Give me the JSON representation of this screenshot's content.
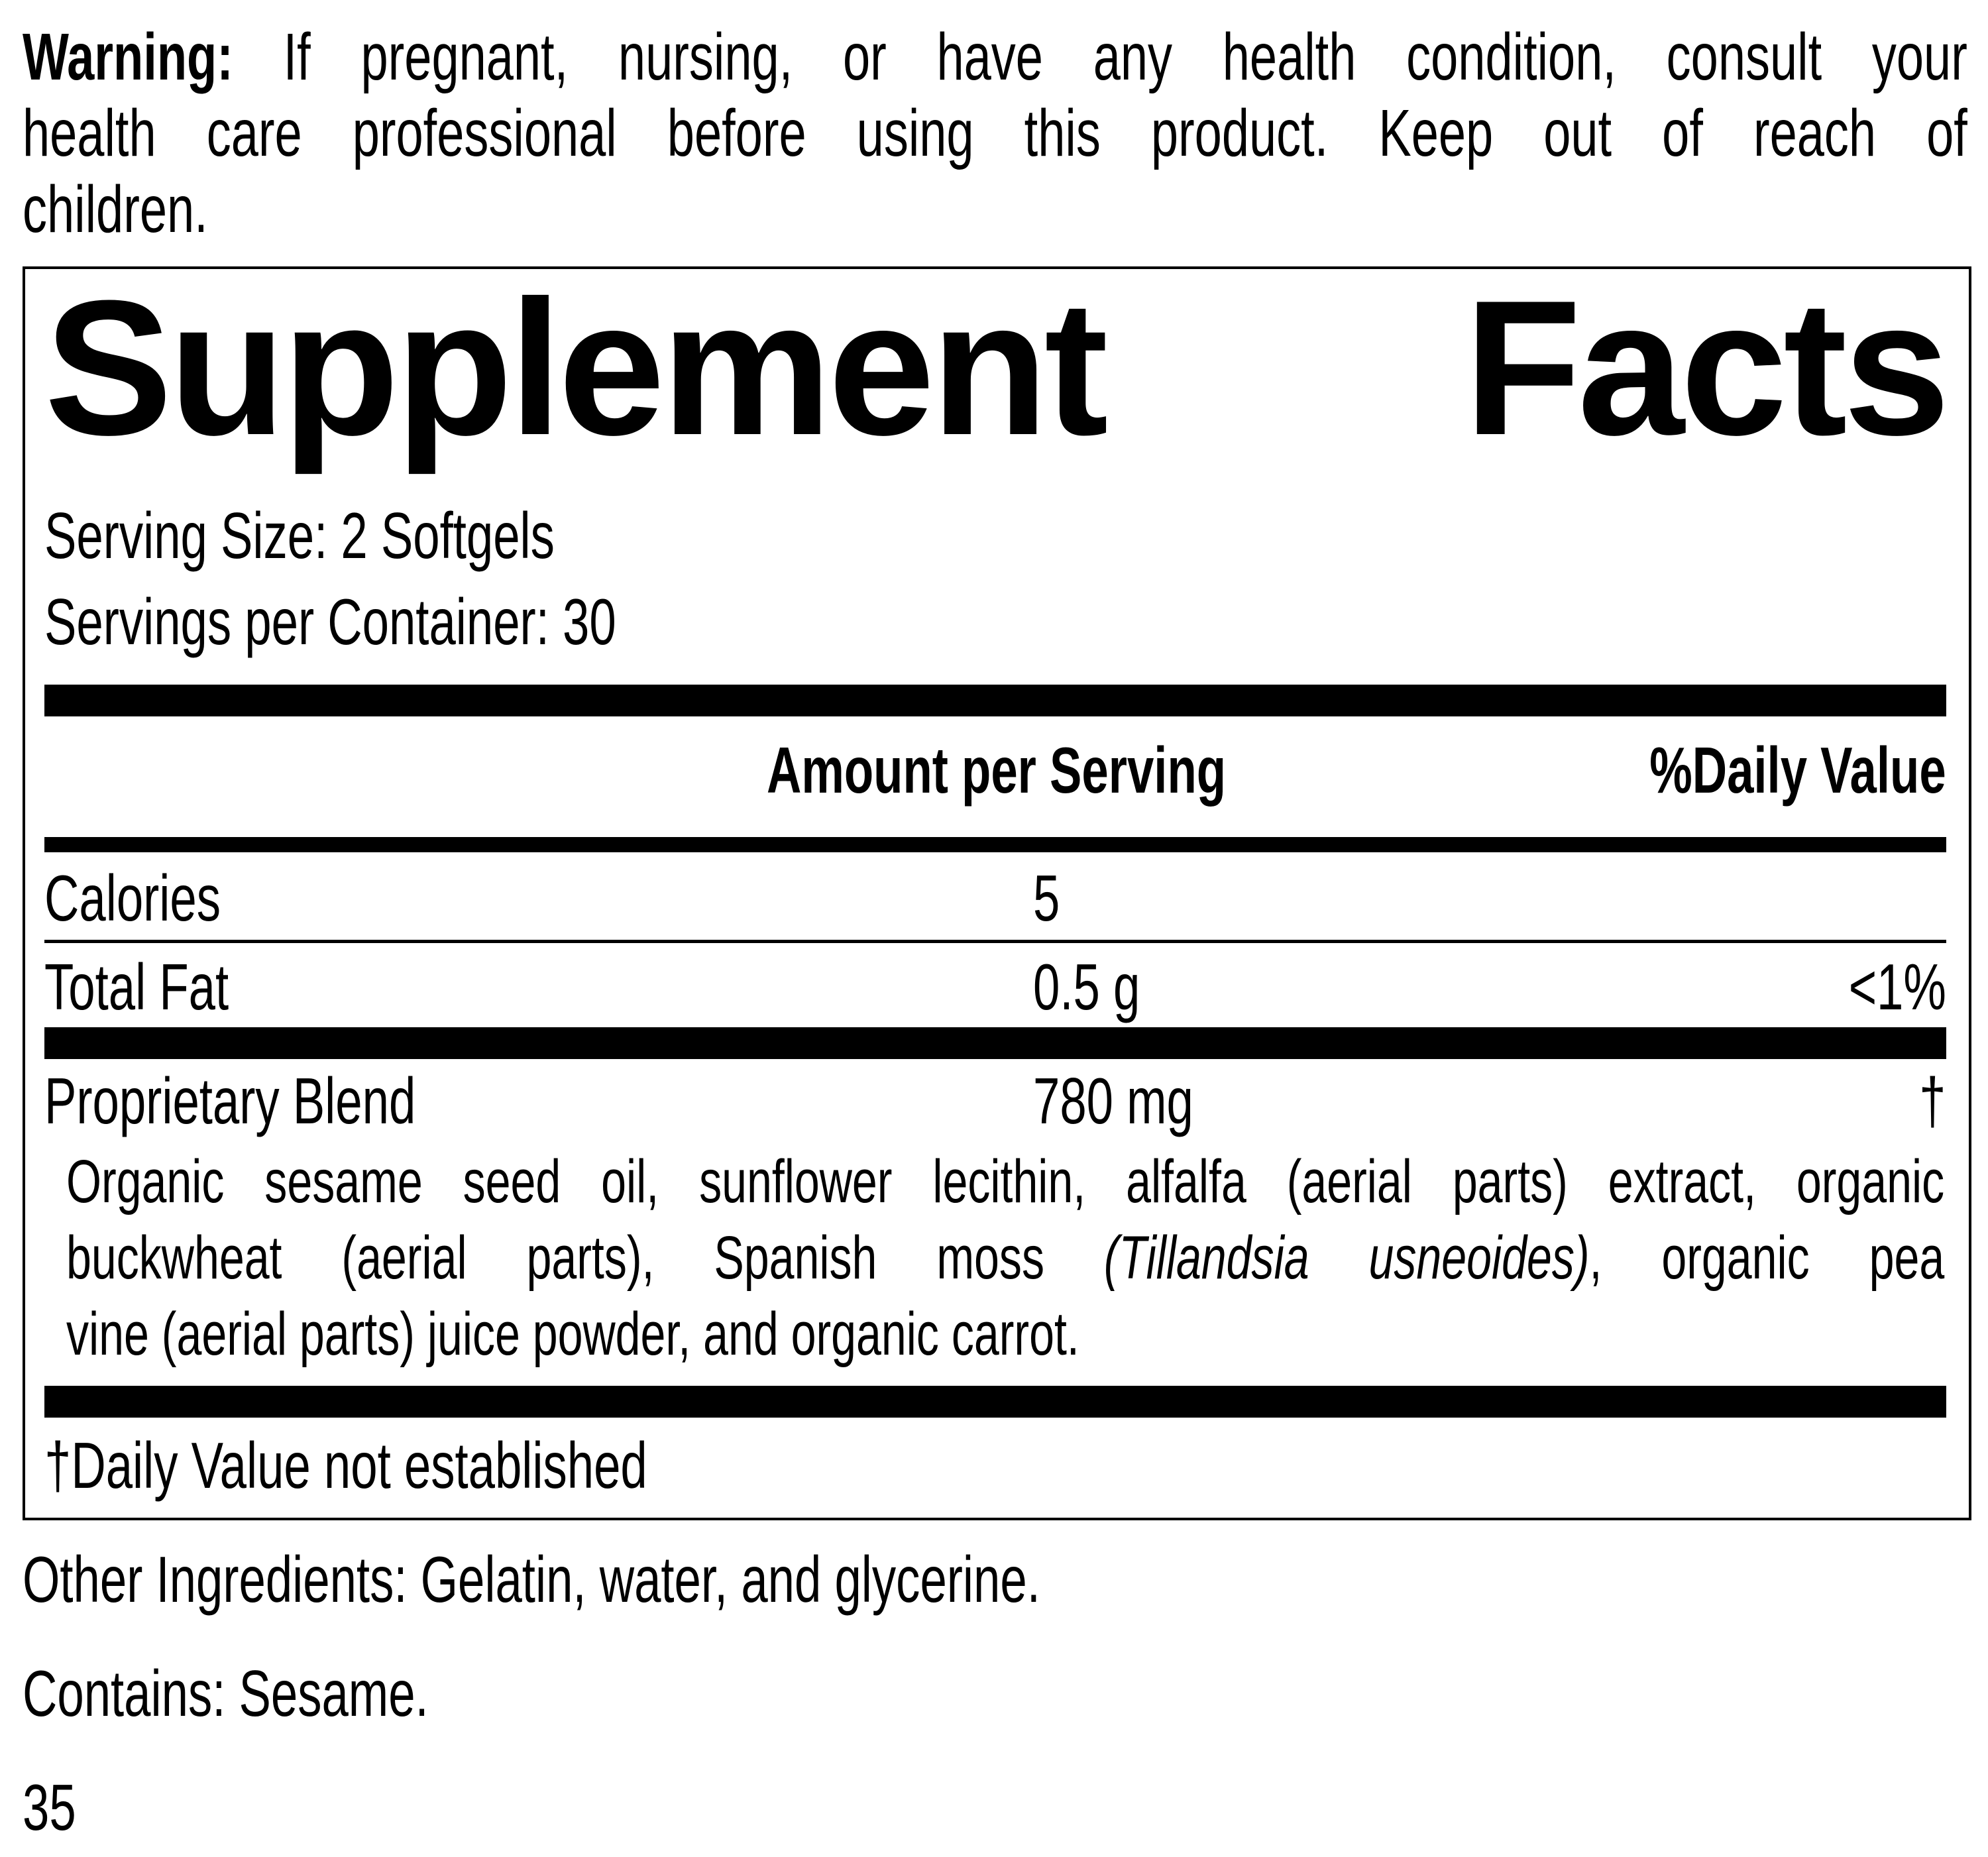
{
  "warning": {
    "label": "Warning:",
    "lines": [
      " If pregnant, nursing, or have any health condition, consult your",
      "health care professional before using this product. Keep out of reach of",
      "children."
    ]
  },
  "facts": {
    "title_words": [
      "Supplement",
      "Facts"
    ],
    "serving_size": "Serving Size: 2 Softgels",
    "servings_per_container": "Servings per Container: 30",
    "header": {
      "amount": "Amount per Serving",
      "dv": "%Daily Value"
    },
    "rows": [
      {
        "name": "Calories",
        "amount": "5",
        "dv": ""
      },
      {
        "name": "Total Fat",
        "amount": "0.5 g",
        "dv": "<1%"
      },
      {
        "name": "Proprietary Blend",
        "amount": "780 mg",
        "dv": "†"
      }
    ],
    "blend_ingredients": {
      "line1": "Organic sesame seed oil, sunflower lecithin, alfalfa (aerial parts) extract, organic",
      "line2_pre": "buckwheat (aerial parts), Spanish moss ",
      "line2_italic": "(Tillandsia usneoides)",
      "line2_post": ", organic pea",
      "line3": "vine (aerial parts) juice powder, and organic carrot."
    },
    "footnote": "†Daily Value not established"
  },
  "other_ingredients": "Other Ingredients: Gelatin, water, and glycerine.",
  "contains": "Contains: Sesame.",
  "page_number": "35"
}
